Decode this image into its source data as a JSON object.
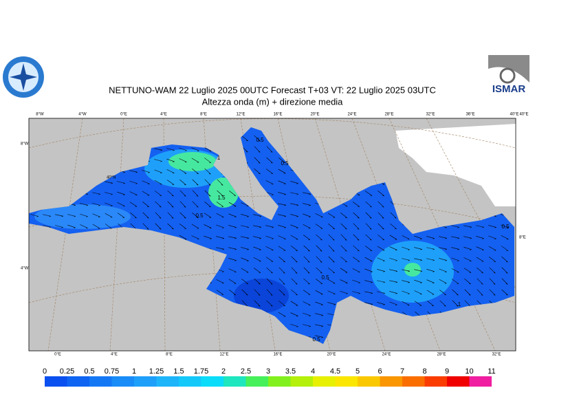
{
  "title": "NETTUNO-WAM  22  Luglio   2025 00UTC Forecast T+03 VT: 22  Luglio   2025 03UTC",
  "subtitle": "Altezza onda (m) + direzione media",
  "logo_text": "ISMAR",
  "top_labels": [
    "8°W",
    "4°W",
    "0°E",
    "4°E",
    "8°E",
    "12°E",
    "16°E",
    "20°E",
    "24°E",
    "28°E",
    "32°E",
    "36°E",
    "40°E",
    "40°E"
  ],
  "left_labels": [
    "8°W",
    "40°N",
    "4°W"
  ],
  "right_labels": [
    "8°E"
  ],
  "bottom_labels": [
    "0°E",
    "4°E",
    "8°E",
    "12°E",
    "16°E",
    "20°E",
    "24°E",
    "28°E",
    "32°E"
  ],
  "contour_labels": [
    1,
    1.5,
    0.5,
    0.5,
    0.5,
    0.5,
    0.5,
    1,
    0.5
  ],
  "colorbar": {
    "levels": [
      0,
      0.25,
      0.5,
      0.75,
      1,
      1.25,
      1.5,
      1.75,
      2,
      2.5,
      3,
      3.5,
      4,
      4.5,
      5,
      6,
      7,
      8,
      9,
      10,
      11
    ],
    "colors": [
      "#0a50f0",
      "#0f64f2",
      "#1478f5",
      "#198cf7",
      "#1ea0fa",
      "#1eb4fa",
      "#14c8fa",
      "#0adcfa",
      "#1ee6be",
      "#46f05a",
      "#82f01e",
      "#b4f00a",
      "#e6f000",
      "#fae600",
      "#fac800",
      "#fa9600",
      "#fa6e00",
      "#fa3c00",
      "#f00000",
      "#f01ea0"
    ]
  }
}
